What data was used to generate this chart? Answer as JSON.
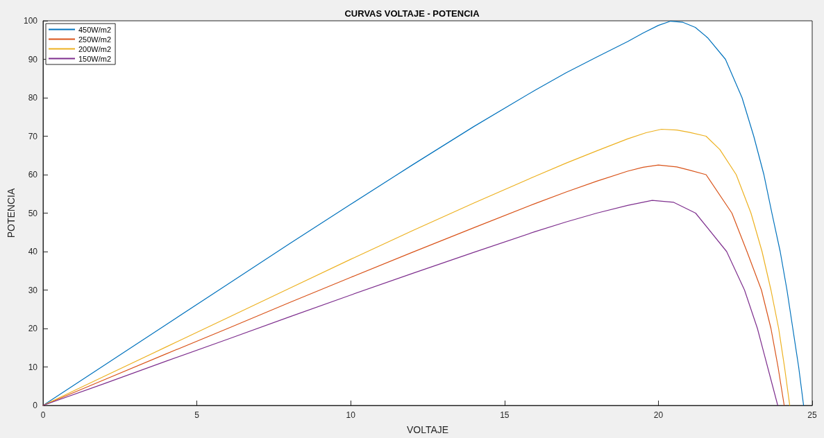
{
  "chart_data": {
    "type": "line",
    "title": "CURVAS VOLTAJE - POTENCIA",
    "xlabel": "VOLTAJE",
    "ylabel": "POTENCIA",
    "xlim": [
      0,
      25
    ],
    "xticks": [
      0,
      5,
      10,
      15,
      20,
      25
    ],
    "ylim": [
      0,
      100
    ],
    "yticks": [
      0,
      10,
      20,
      30,
      40,
      50,
      60,
      70,
      80,
      90,
      100
    ],
    "grid": false,
    "legend": "top left",
    "marker": "none",
    "line_style": "solid",
    "series": [
      {
        "name": "450W/m2",
        "color": "#0072bd",
        "x": [
          0,
          2,
          4,
          6,
          8,
          10,
          12,
          14,
          16,
          17,
          18,
          19,
          19.5,
          20,
          20.4,
          20.8,
          21.2,
          21.6,
          22.18,
          22.72,
          23.1,
          23.43,
          23.69,
          23.96,
          24.18,
          24.37,
          24.56,
          24.72
        ],
        "values": [
          0,
          10.5,
          21,
          31.5,
          42,
          52.3,
          62.5,
          72.5,
          82,
          86.5,
          90.6,
          94.6,
          96.8,
          98.8,
          99.9,
          99.6,
          98.3,
          95.6,
          90,
          80,
          70,
          60,
          50,
          40,
          30,
          20,
          10,
          0
        ]
      },
      {
        "name": "250W/m2",
        "color": "#d95319",
        "x": [
          0,
          2,
          4,
          6,
          8,
          10,
          12,
          14,
          16,
          17,
          18,
          19,
          19.5,
          20,
          20.6,
          21,
          21.55,
          22.39,
          22.88,
          23.35,
          23.66,
          23.89,
          24.09
        ],
        "values": [
          0,
          6.7,
          13.4,
          20,
          26.7,
          33.3,
          39.8,
          46.2,
          52.5,
          55.5,
          58.3,
          60.9,
          61.9,
          62.5,
          62,
          61.2,
          60,
          50,
          40,
          30,
          20,
          10,
          0
        ]
      },
      {
        "name": "200W/m2",
        "color": "#edb120",
        "x": [
          0,
          2,
          4,
          6,
          8,
          10,
          12,
          14,
          16,
          17,
          18,
          19,
          19.6,
          20.1,
          20.6,
          21,
          21.55,
          22,
          22.53,
          23.01,
          23.37,
          23.66,
          23.91,
          24.1,
          24.27
        ],
        "values": [
          0,
          7.6,
          15.2,
          22.8,
          30.4,
          38,
          45.4,
          52.6,
          59.6,
          63,
          66.2,
          69.3,
          70.9,
          71.8,
          71.6,
          71,
          70,
          66.5,
          60,
          50,
          40,
          30,
          20,
          10,
          0
        ]
      },
      {
        "name": "150W/m2",
        "color": "#7e2f8e",
        "x": [
          0,
          2,
          4,
          6,
          8,
          10,
          12,
          14,
          16,
          17,
          18,
          19,
          19.8,
          20.5,
          21.21,
          22.22,
          22.8,
          23.22,
          23.55,
          23.88
        ],
        "values": [
          0,
          5.7,
          11.5,
          17.2,
          23,
          28.7,
          34.3,
          39.8,
          45.2,
          47.7,
          50,
          52,
          53.3,
          52.8,
          50,
          40,
          30,
          20,
          10,
          0
        ]
      }
    ]
  }
}
